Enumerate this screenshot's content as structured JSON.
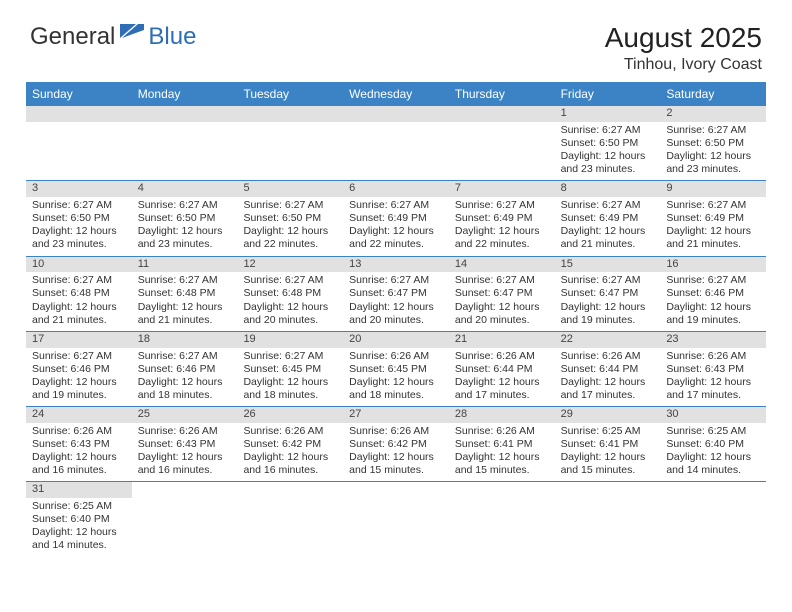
{
  "logo": {
    "general": "General",
    "blue": "Blue"
  },
  "title": {
    "month_year": "August 2025",
    "location": "Tinhou, Ivory Coast"
  },
  "colors": {
    "header_bg": "#3b83c4",
    "daynum_bg": "#e1e1e1",
    "border": "#3b83c4"
  },
  "weekdays": [
    "Sunday",
    "Monday",
    "Tuesday",
    "Wednesday",
    "Thursday",
    "Friday",
    "Saturday"
  ],
  "weeks": [
    [
      null,
      null,
      null,
      null,
      null,
      {
        "n": "1",
        "sr": "6:27 AM",
        "ss": "6:50 PM",
        "dl": "12 hours and 23 minutes."
      },
      {
        "n": "2",
        "sr": "6:27 AM",
        "ss": "6:50 PM",
        "dl": "12 hours and 23 minutes."
      }
    ],
    [
      {
        "n": "3",
        "sr": "6:27 AM",
        "ss": "6:50 PM",
        "dl": "12 hours and 23 minutes."
      },
      {
        "n": "4",
        "sr": "6:27 AM",
        "ss": "6:50 PM",
        "dl": "12 hours and 23 minutes."
      },
      {
        "n": "5",
        "sr": "6:27 AM",
        "ss": "6:50 PM",
        "dl": "12 hours and 22 minutes."
      },
      {
        "n": "6",
        "sr": "6:27 AM",
        "ss": "6:49 PM",
        "dl": "12 hours and 22 minutes."
      },
      {
        "n": "7",
        "sr": "6:27 AM",
        "ss": "6:49 PM",
        "dl": "12 hours and 22 minutes."
      },
      {
        "n": "8",
        "sr": "6:27 AM",
        "ss": "6:49 PM",
        "dl": "12 hours and 21 minutes."
      },
      {
        "n": "9",
        "sr": "6:27 AM",
        "ss": "6:49 PM",
        "dl": "12 hours and 21 minutes."
      }
    ],
    [
      {
        "n": "10",
        "sr": "6:27 AM",
        "ss": "6:48 PM",
        "dl": "12 hours and 21 minutes."
      },
      {
        "n": "11",
        "sr": "6:27 AM",
        "ss": "6:48 PM",
        "dl": "12 hours and 21 minutes."
      },
      {
        "n": "12",
        "sr": "6:27 AM",
        "ss": "6:48 PM",
        "dl": "12 hours and 20 minutes."
      },
      {
        "n": "13",
        "sr": "6:27 AM",
        "ss": "6:47 PM",
        "dl": "12 hours and 20 minutes."
      },
      {
        "n": "14",
        "sr": "6:27 AM",
        "ss": "6:47 PM",
        "dl": "12 hours and 20 minutes."
      },
      {
        "n": "15",
        "sr": "6:27 AM",
        "ss": "6:47 PM",
        "dl": "12 hours and 19 minutes."
      },
      {
        "n": "16",
        "sr": "6:27 AM",
        "ss": "6:46 PM",
        "dl": "12 hours and 19 minutes."
      }
    ],
    [
      {
        "n": "17",
        "sr": "6:27 AM",
        "ss": "6:46 PM",
        "dl": "12 hours and 19 minutes."
      },
      {
        "n": "18",
        "sr": "6:27 AM",
        "ss": "6:46 PM",
        "dl": "12 hours and 18 minutes."
      },
      {
        "n": "19",
        "sr": "6:27 AM",
        "ss": "6:45 PM",
        "dl": "12 hours and 18 minutes."
      },
      {
        "n": "20",
        "sr": "6:26 AM",
        "ss": "6:45 PM",
        "dl": "12 hours and 18 minutes."
      },
      {
        "n": "21",
        "sr": "6:26 AM",
        "ss": "6:44 PM",
        "dl": "12 hours and 17 minutes."
      },
      {
        "n": "22",
        "sr": "6:26 AM",
        "ss": "6:44 PM",
        "dl": "12 hours and 17 minutes."
      },
      {
        "n": "23",
        "sr": "6:26 AM",
        "ss": "6:43 PM",
        "dl": "12 hours and 17 minutes."
      }
    ],
    [
      {
        "n": "24",
        "sr": "6:26 AM",
        "ss": "6:43 PM",
        "dl": "12 hours and 16 minutes."
      },
      {
        "n": "25",
        "sr": "6:26 AM",
        "ss": "6:43 PM",
        "dl": "12 hours and 16 minutes."
      },
      {
        "n": "26",
        "sr": "6:26 AM",
        "ss": "6:42 PM",
        "dl": "12 hours and 16 minutes."
      },
      {
        "n": "27",
        "sr": "6:26 AM",
        "ss": "6:42 PM",
        "dl": "12 hours and 15 minutes."
      },
      {
        "n": "28",
        "sr": "6:26 AM",
        "ss": "6:41 PM",
        "dl": "12 hours and 15 minutes."
      },
      {
        "n": "29",
        "sr": "6:25 AM",
        "ss": "6:41 PM",
        "dl": "12 hours and 15 minutes."
      },
      {
        "n": "30",
        "sr": "6:25 AM",
        "ss": "6:40 PM",
        "dl": "12 hours and 14 minutes."
      }
    ],
    [
      {
        "n": "31",
        "sr": "6:25 AM",
        "ss": "6:40 PM",
        "dl": "12 hours and 14 minutes."
      },
      null,
      null,
      null,
      null,
      null,
      null
    ]
  ],
  "labels": {
    "sunrise": "Sunrise:",
    "sunset": "Sunset:",
    "daylight": "Daylight:"
  }
}
